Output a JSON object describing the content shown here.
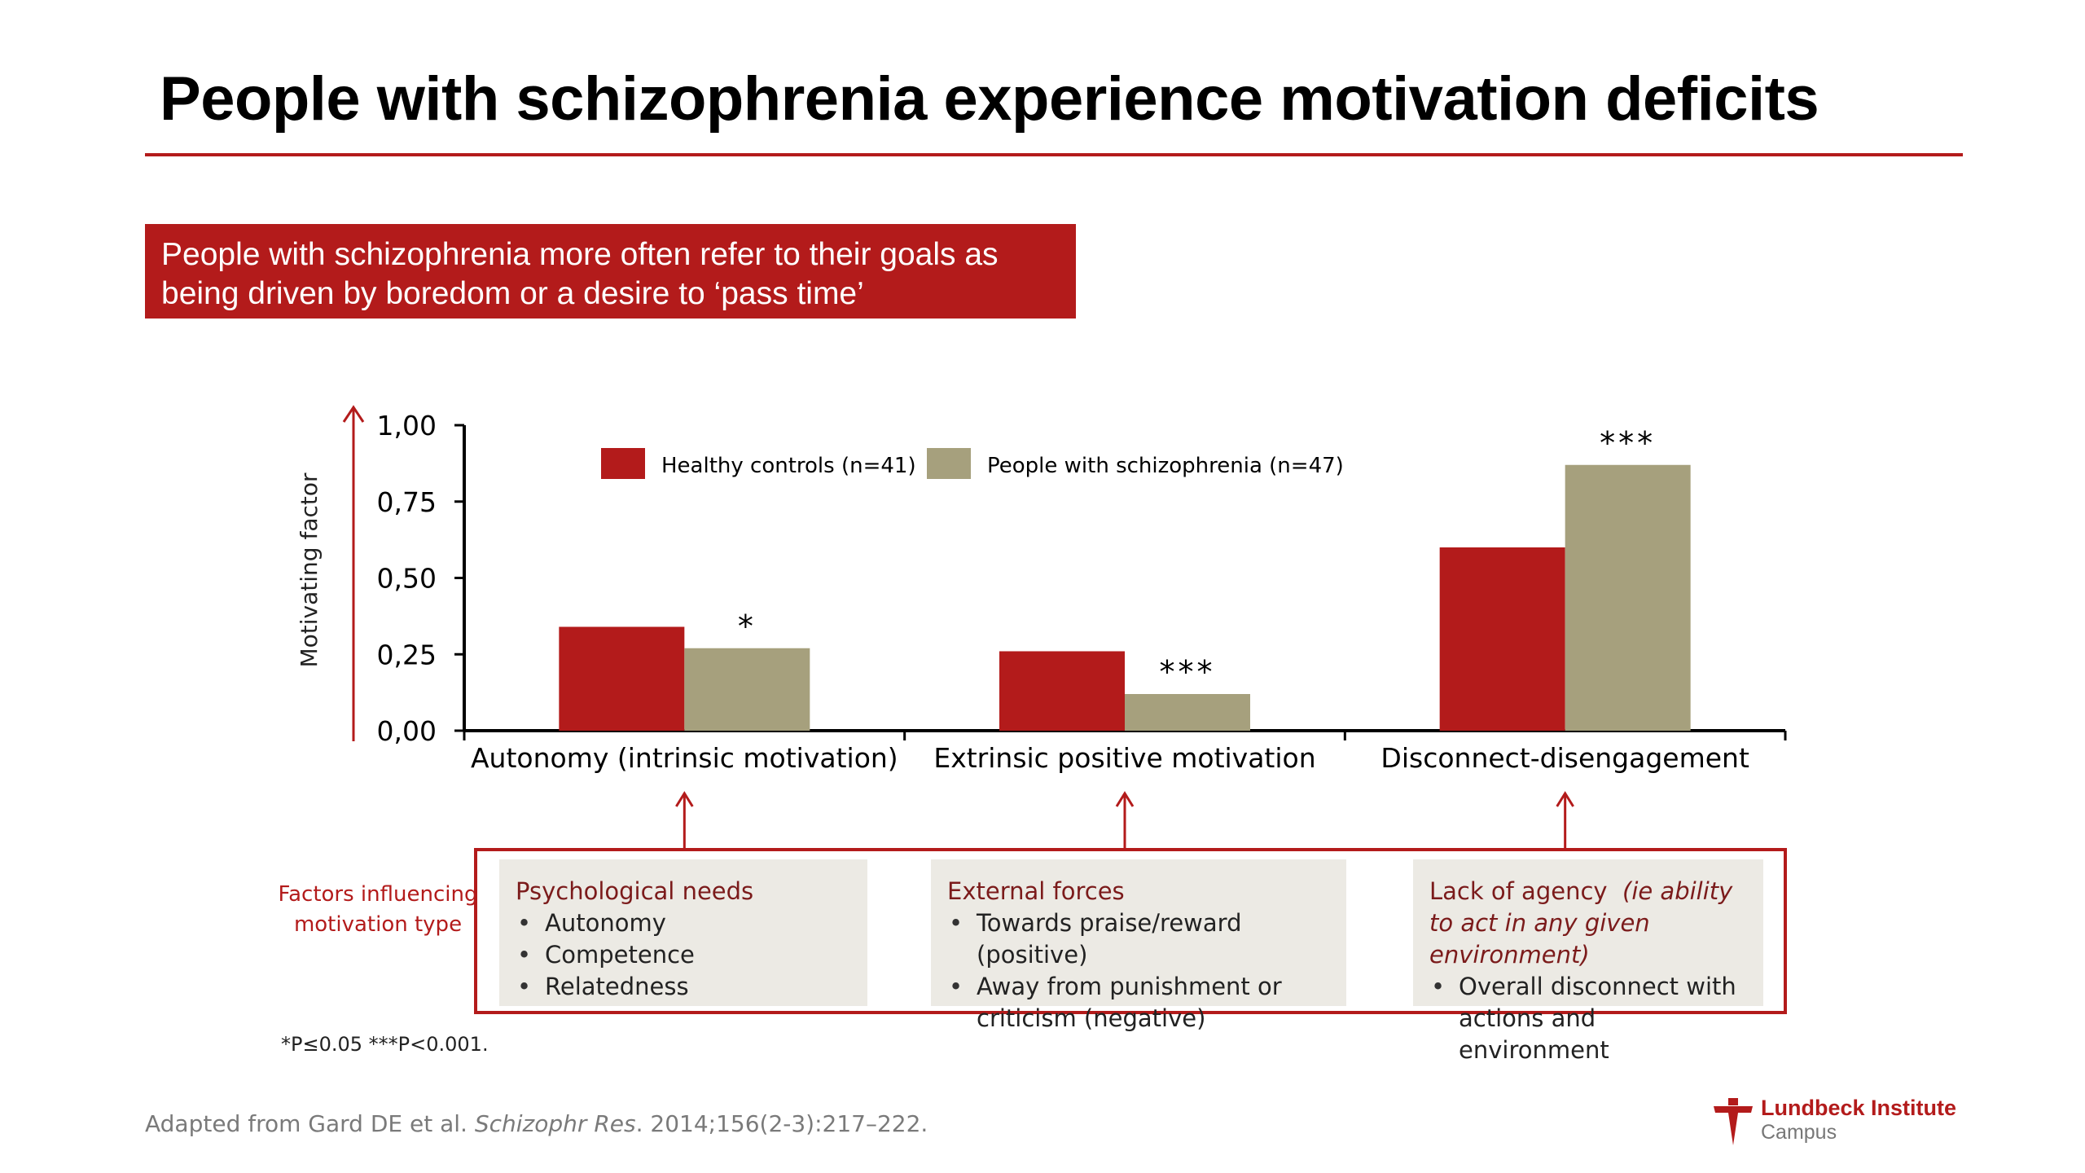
{
  "slide": {
    "title": "People with schizophrenia experience motivation deficits",
    "callout_line1": "People with schizophrenia more often refer to their goals as",
    "callout_line2": "being driven by boredom or a desire to ‘pass time’",
    "factors_label_line1": "Factors influencing",
    "factors_label_line2": "motivation type",
    "significance_note": "*P≤0.05 ***P<0.001.",
    "citation_prefix": "Adapted from Gard DE et al. ",
    "citation_journal": "Schizophr Res",
    "citation_suffix": ". 2014;156(2-3):217–222.",
    "logo_line1": "Lundbeck Institute",
    "logo_line2": "Campus",
    "colors": {
      "accent": "#b31b1b",
      "controls": "#b31b1b",
      "schizophrenia": "#a6a07d",
      "panel": "#eceae4"
    }
  },
  "factors": [
    {
      "heading": "Psychological needs",
      "note": "",
      "items": [
        "Autonomy",
        "Competence",
        "Relatedness"
      ]
    },
    {
      "heading": "External forces",
      "note": "",
      "items": [
        "Towards praise/reward (positive)",
        "Away from punishment or criticism (negative)"
      ]
    },
    {
      "heading": "Lack of agency",
      "note": "(ie ability to act in any given environment)",
      "items": [
        "Overall disconnect with actions and environment"
      ]
    }
  ],
  "chart_data": {
    "type": "bar",
    "title": "",
    "xlabel": "",
    "ylabel": "Motivating factor",
    "ylim": [
      0,
      1
    ],
    "yticks": [
      0,
      0.25,
      0.5,
      0.75,
      1
    ],
    "ytick_labels": [
      "0,00",
      "0,25",
      "0,50",
      "0,75",
      "1,00"
    ],
    "categories": [
      "Autonomy (intrinsic motivation)",
      "Extrinsic positive motivation",
      "Disconnect-disengagement"
    ],
    "series": [
      {
        "name": "Healthy controls (n=41)",
        "values": [
          0.34,
          0.26,
          0.6
        ],
        "color": "#b31b1b"
      },
      {
        "name": "People with schizophrenia (n=47)",
        "values": [
          0.27,
          0.12,
          0.87
        ],
        "color": "#a6a07d"
      }
    ],
    "significance": [
      "*",
      "***",
      "***"
    ],
    "legend": "top-center"
  }
}
